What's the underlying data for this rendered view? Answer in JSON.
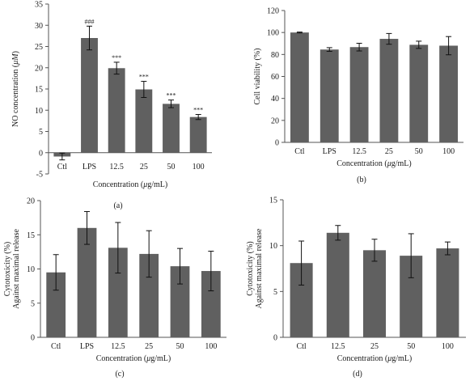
{
  "chart_data": [
    {
      "panel": "(a)",
      "type": "bar",
      "categories": [
        "Ctl",
        "LPS",
        "12.5",
        "25",
        "50",
        "100"
      ],
      "values": [
        -0.9,
        27.0,
        19.9,
        14.9,
        11.5,
        8.4
      ],
      "errors": [
        0.8,
        2.8,
        1.4,
        1.9,
        0.9,
        0.6
      ],
      "annotations": [
        "",
        "###",
        "***",
        "***",
        "***",
        "***"
      ],
      "xlabel": "Concentration (μg/mL)",
      "ylabel": "NO concentration (μM)",
      "ylim": [
        -5,
        35
      ],
      "yticks": [
        -5,
        0,
        5,
        10,
        15,
        20,
        25,
        30,
        35
      ],
      "bar_color": "#606060"
    },
    {
      "panel": "(b)",
      "type": "bar",
      "categories": [
        "Ctl",
        "LPS",
        "12.5",
        "25",
        "50",
        "100"
      ],
      "values": [
        100,
        84.5,
        86.7,
        94.2,
        88.8,
        88.0
      ],
      "errors": [
        0.4,
        1.7,
        3.5,
        4.9,
        3.3,
        8.3
      ],
      "xlabel": "Concentration (μg/mL)",
      "ylabel": "Cell viability (%)",
      "ylim": [
        0,
        120
      ],
      "yticks": [
        0,
        20,
        40,
        60,
        80,
        100,
        120
      ],
      "bar_color": "#606060"
    },
    {
      "panel": "(c)",
      "type": "bar",
      "categories": [
        "Ctl",
        "LPS",
        "12.5",
        "25",
        "50",
        "100"
      ],
      "values": [
        9.5,
        16.0,
        13.1,
        12.2,
        10.4,
        9.7
      ],
      "errors": [
        2.6,
        2.4,
        3.7,
        3.4,
        2.6,
        2.9
      ],
      "xlabel": "Concentration (μg/mL)",
      "ylabel": "Cytotoxicity (%)",
      "ylabel2": "Against maximal release",
      "ylim": [
        0,
        20
      ],
      "yticks": [
        0,
        5,
        10,
        15,
        20
      ],
      "bar_color": "#606060"
    },
    {
      "panel": "(d)",
      "type": "bar",
      "categories": [
        "Ctl",
        "12.5",
        "25",
        "50",
        "100"
      ],
      "values": [
        8.1,
        11.4,
        9.5,
        8.9,
        9.7
      ],
      "errors": [
        2.4,
        0.8,
        1.2,
        2.4,
        0.7
      ],
      "xlabel": "Concentration (μg/mL)",
      "ylabel": "Cytotoxicity (%)",
      "ylabel2": "Against maximal release",
      "ylim": [
        0,
        15
      ],
      "yticks": [
        0,
        5,
        10,
        15
      ],
      "bar_color": "#606060"
    }
  ]
}
